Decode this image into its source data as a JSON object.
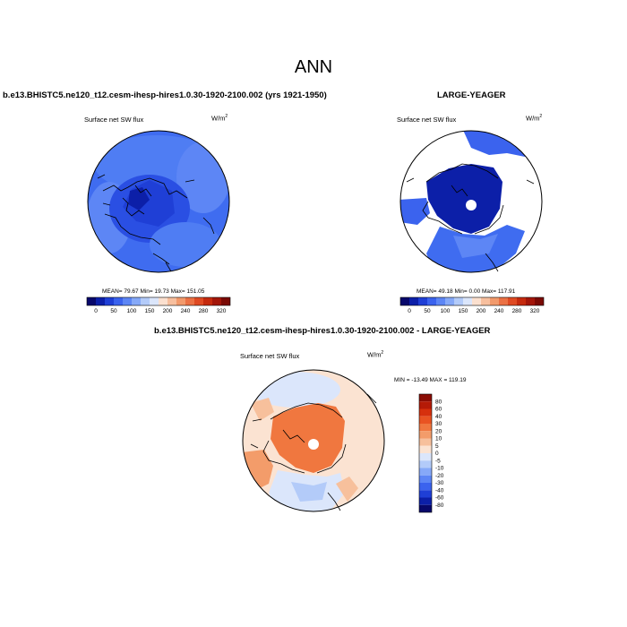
{
  "main_title": "ANN",
  "panels": {
    "test": {
      "title": "b.e13.BHISTC5.ne120_t12.cesm-ihesp-hires1.0.30-1920-2100.002 (yrs 1921-1950)",
      "variable": "Surface net SW flux",
      "units_base": "W/m",
      "units_exp": "2",
      "stats": "MEAN= 79.67   Min= 19.73   Max= 151.05"
    },
    "ref": {
      "title": "LARGE-YEAGER",
      "variable": "Surface net SW flux",
      "units_base": "W/m",
      "units_exp": "2",
      "stats": "MEAN= 49.18   Min=  0.00   Max= 117.91"
    },
    "diff": {
      "title": "b.e13.BHISTC5.ne120_t12.cesm-ihesp-hires1.0.30-1920-2100.002 - LARGE-YEAGER",
      "variable": "Surface net SW flux",
      "units_base": "W/m",
      "units_exp": "2",
      "stats": "MIN = -13.49 MAX = 119.19"
    }
  },
  "colorbars": {
    "abs": {
      "labels": [
        "0",
        "50",
        "100",
        "150",
        "200",
        "240",
        "280",
        "320"
      ],
      "colors": [
        "#08086b",
        "#0c1fa8",
        "#1f3fd6",
        "#3b63ee",
        "#5d86f5",
        "#86a9f8",
        "#b3cbf9",
        "#dbe6fb",
        "#fbe0cf",
        "#f7bf9e",
        "#f29a6c",
        "#eb7144",
        "#df4a23",
        "#c52a0e",
        "#a3160a",
        "#7a0a05"
      ]
    },
    "diff": {
      "labels": [
        "80",
        "60",
        "40",
        "30",
        "20",
        "10",
        "5",
        "0",
        "-5",
        "-10",
        "-20",
        "-30",
        "-40",
        "-60",
        "-80"
      ],
      "colors": [
        "#8b0d05",
        "#b51a07",
        "#d6300d",
        "#e95322",
        "#f0773f",
        "#f39c6a",
        "#f7c09c",
        "#fbe3d2",
        "#dbe6fb",
        "#b3cbf9",
        "#86a9f8",
        "#5d86f5",
        "#3b63ee",
        "#1f3fd6",
        "#0c1fa8",
        "#08086b"
      ]
    }
  }
}
